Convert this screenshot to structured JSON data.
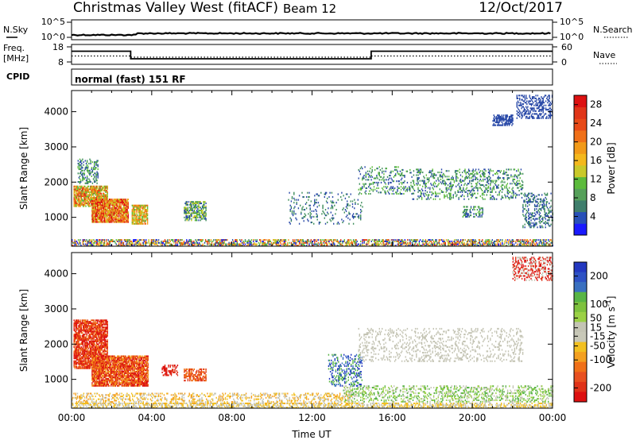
{
  "header": {
    "station": "Christmas Valley West (fitACF)",
    "beam": "Beam 12",
    "date": "12/Oct/2017"
  },
  "strip_labels": {
    "nsky": "N.Sky",
    "nsearch": "N.Search",
    "freq": "Freq.",
    "freq_unit": "[MHz]",
    "nave": "Nave",
    "cpid": "CPID",
    "cpid_value": "normal (fast) 151 RF"
  },
  "strip_ticks": {
    "noise_left": [
      "10^5",
      "10^0"
    ],
    "noise_right": [
      "10^5",
      "10^0"
    ],
    "freq_left": [
      "18",
      "8"
    ],
    "freq_right": [
      "60",
      "0"
    ]
  },
  "x_axis": {
    "label": "Time UT",
    "ticks": [
      "00:00",
      "04:00",
      "08:00",
      "12:00",
      "16:00",
      "20:00",
      "00:00"
    ]
  },
  "colors": {
    "power": [
      "#1a1aff",
      "#2a4aa8",
      "#3f8e5c",
      "#5cbb3c",
      "#c7c728",
      "#f2a21a",
      "#f07018",
      "#e03518",
      "#dd1111"
    ],
    "velocity": [
      "#2338c0",
      "#3a70c0",
      "#58b546",
      "#9bd145",
      "#c4c4b4",
      "#f2c020",
      "#f4a020",
      "#f07018",
      "#e03218",
      "#dd1010"
    ],
    "power_cb": [
      "#1a1aff",
      "#2850b8",
      "#3f7e6c",
      "#56a05a",
      "#5cbb3c",
      "#c9c92a",
      "#f4b81c",
      "#f29a18",
      "#f07018",
      "#e84a18",
      "#e03518",
      "#dd1111"
    ],
    "velocity_cb": [
      "#2338c0",
      "#2e52c4",
      "#3a70c0",
      "#58b546",
      "#7ec23e",
      "#9bd145",
      "#c4c4b4",
      "#c8c8b8",
      "#f2c020",
      "#f4a020",
      "#f07018",
      "#e85020",
      "#e03218",
      "#dd1010"
    ]
  },
  "chart_data": [
    {
      "type": "heatmap",
      "title": "",
      "ylabel": "Slant Range [km]",
      "xlabel": "",
      "xlim_hours": [
        0,
        24
      ],
      "ylim_km": [
        180,
        4600
      ],
      "y_ticks": [
        1000,
        2000,
        3000,
        4000
      ],
      "colorbar": {
        "label": "Power [dB]",
        "ticks": [
          4,
          8,
          12,
          16,
          20,
          24,
          28
        ],
        "range": [
          0,
          30
        ]
      },
      "echo_regions": [
        {
          "t0": 0.0,
          "t1": 24.0,
          "r0": 180,
          "r1": 380,
          "density": 0.55,
          "levels": [
            0,
            1,
            2,
            3,
            4,
            5,
            6,
            7
          ]
        },
        {
          "t0": 0.1,
          "t1": 1.8,
          "r0": 1300,
          "r1": 1900,
          "density": 0.85,
          "levels": [
            3,
            4,
            5,
            6,
            7
          ]
        },
        {
          "t0": 0.3,
          "t1": 1.3,
          "r0": 1950,
          "r1": 2650,
          "density": 0.35,
          "levels": [
            1,
            2,
            3
          ]
        },
        {
          "t0": 1.0,
          "t1": 2.8,
          "r0": 850,
          "r1": 1500,
          "density": 0.9,
          "levels": [
            4,
            5,
            6,
            7,
            8
          ]
        },
        {
          "t0": 3.0,
          "t1": 3.8,
          "r0": 800,
          "r1": 1350,
          "density": 0.8,
          "levels": [
            3,
            4,
            5,
            6
          ]
        },
        {
          "t0": 5.6,
          "t1": 6.7,
          "r0": 900,
          "r1": 1450,
          "density": 0.6,
          "levels": [
            1,
            2,
            3,
            4
          ]
        },
        {
          "t0": 10.8,
          "t1": 14.5,
          "r0": 800,
          "r1": 1700,
          "density": 0.12,
          "levels": [
            1,
            2
          ]
        },
        {
          "t0": 14.3,
          "t1": 17.0,
          "r0": 1650,
          "r1": 2450,
          "density": 0.2,
          "levels": [
            1,
            2,
            3
          ]
        },
        {
          "t0": 17.0,
          "t1": 22.5,
          "r0": 1500,
          "r1": 2350,
          "density": 0.25,
          "levels": [
            1,
            2,
            3
          ]
        },
        {
          "t0": 19.5,
          "t1": 20.5,
          "r0": 1000,
          "r1": 1300,
          "density": 0.4,
          "levels": [
            1,
            2,
            3
          ]
        },
        {
          "t0": 21.0,
          "t1": 22.0,
          "r0": 3600,
          "r1": 3900,
          "density": 0.6,
          "levels": [
            1
          ]
        },
        {
          "t0": 22.2,
          "t1": 24.0,
          "r0": 3800,
          "r1": 4450,
          "density": 0.35,
          "levels": [
            1
          ]
        },
        {
          "t0": 22.5,
          "t1": 24.0,
          "r0": 700,
          "r1": 1700,
          "density": 0.3,
          "levels": [
            1,
            2
          ]
        }
      ]
    },
    {
      "type": "heatmap",
      "title": "",
      "ylabel": "Slant Range [km]",
      "xlabel": "Time UT",
      "xlim_hours": [
        0,
        24
      ],
      "ylim_km": [
        180,
        4600
      ],
      "y_ticks": [
        1000,
        2000,
        3000,
        4000
      ],
      "colorbar": {
        "label": "Velocity [m s^-1]",
        "ticks": [
          200,
          100,
          50,
          15,
          -15,
          -50,
          -100,
          -200
        ],
        "range": [
          -250,
          250
        ]
      },
      "echo_regions": [
        {
          "t0": 0.0,
          "t1": 24.0,
          "r0": 180,
          "r1": 320,
          "density": 0.5,
          "levels": [
            4,
            5
          ]
        },
        {
          "t0": 0.0,
          "t1": 14.0,
          "r0": 300,
          "r1": 600,
          "density": 0.3,
          "levels": [
            5,
            6,
            4
          ]
        },
        {
          "t0": 13.5,
          "t1": 24.0,
          "r0": 350,
          "r1": 800,
          "density": 0.3,
          "levels": [
            2,
            3,
            4
          ]
        },
        {
          "t0": 0.1,
          "t1": 1.8,
          "r0": 1300,
          "r1": 2700,
          "density": 0.8,
          "levels": [
            8,
            9,
            7
          ]
        },
        {
          "t0": 1.0,
          "t1": 3.8,
          "r0": 800,
          "r1": 1650,
          "density": 0.85,
          "levels": [
            7,
            8,
            9,
            6
          ]
        },
        {
          "t0": 4.5,
          "t1": 5.3,
          "r0": 1100,
          "r1": 1400,
          "density": 0.5,
          "levels": [
            8,
            9
          ]
        },
        {
          "t0": 5.6,
          "t1": 6.7,
          "r0": 950,
          "r1": 1300,
          "density": 0.6,
          "levels": [
            7,
            8
          ]
        },
        {
          "t0": 12.8,
          "t1": 14.5,
          "r0": 800,
          "r1": 1700,
          "density": 0.3,
          "levels": [
            0,
            1,
            2
          ]
        },
        {
          "t0": 14.3,
          "t1": 22.5,
          "r0": 1500,
          "r1": 2450,
          "density": 0.18,
          "levels": [
            4
          ]
        },
        {
          "t0": 22.0,
          "t1": 24.0,
          "r0": 3800,
          "r1": 4450,
          "density": 0.4,
          "levels": [
            4,
            8,
            9
          ]
        }
      ]
    }
  ]
}
